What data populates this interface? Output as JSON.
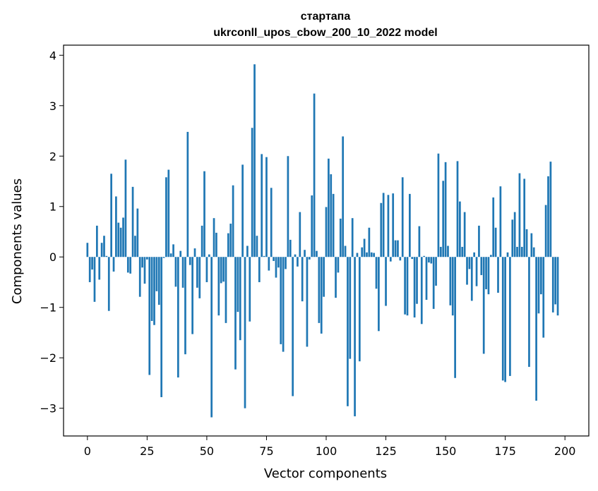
{
  "chart_data": {
    "type": "bar",
    "title_lines": [
      "стартапа",
      "ukrconll_upos_cbow_200_10_2022 model"
    ],
    "xlabel": "Vector components",
    "ylabel": "Components values",
    "xlim": [
      -10,
      210
    ],
    "ylim": [
      -3.55,
      4.2
    ],
    "x_ticks": [
      0,
      25,
      50,
      75,
      100,
      125,
      150,
      175,
      200
    ],
    "y_ticks": [
      -3,
      -2,
      -1,
      0,
      1,
      2,
      3,
      4
    ],
    "y_tick_labels": [
      "−3",
      "−2",
      "−1",
      "0",
      "1",
      "2",
      "3",
      "4"
    ],
    "bar_color": "#1f77b4",
    "grid": false,
    "legend": "none",
    "values": [
      0.28,
      -0.5,
      -0.25,
      -0.89,
      0.62,
      -0.45,
      0.28,
      0.42,
      0.02,
      -1.07,
      1.65,
      -0.29,
      1.2,
      0.68,
      0.58,
      0.78,
      1.93,
      -0.31,
      -0.33,
      1.39,
      0.42,
      0.96,
      -0.79,
      -0.21,
      -0.53,
      -0.05,
      -2.34,
      -1.27,
      -1.35,
      -0.68,
      -0.95,
      -2.78,
      -0.02,
      1.58,
      1.73,
      0.07,
      0.25,
      -0.59,
      -2.39,
      0.12,
      -0.61,
      -1.93,
      2.48,
      -0.16,
      -1.53,
      0.17,
      -0.61,
      -0.82,
      0.62,
      1.7,
      -0.5,
      0.05,
      -3.18,
      0.77,
      0.48,
      -1.16,
      -0.52,
      -0.49,
      -1.31,
      0.47,
      0.66,
      1.42,
      -2.23,
      -1.09,
      -1.65,
      1.83,
      -3.0,
      0.22,
      -1.28,
      2.56,
      3.82,
      0.42,
      -0.5,
      2.04,
      0.02,
      1.98,
      -0.27,
      1.37,
      -0.08,
      -0.41,
      -0.21,
      -1.73,
      -1.88,
      -0.24,
      2.0,
      0.34,
      -2.76,
      0.05,
      -0.19,
      0.89,
      -0.88,
      0.14,
      -1.78,
      -0.05,
      1.22,
      3.24,
      0.12,
      -1.31,
      -1.52,
      -0.79,
      0.99,
      1.95,
      1.64,
      1.25,
      -0.81,
      -0.31,
      0.76,
      2.39,
      0.22,
      -2.96,
      -2.02,
      0.77,
      -3.16,
      0.08,
      -2.07,
      0.19,
      0.36,
      0.09,
      0.58,
      0.09,
      0.08,
      -0.63,
      -1.47,
      1.07,
      1.27,
      -0.97,
      1.23,
      -0.09,
      1.26,
      0.33,
      0.33,
      -0.07,
      1.58,
      -1.14,
      -1.16,
      1.25,
      -0.04,
      -1.2,
      -0.93,
      0.61,
      -1.33,
      0.02,
      -0.85,
      -0.11,
      -0.13,
      -1.03,
      -0.57,
      2.05,
      0.2,
      1.51,
      1.88,
      0.22,
      -0.96,
      -1.16,
      -2.4,
      1.9,
      1.1,
      0.2,
      0.89,
      -0.55,
      -0.24,
      -0.87,
      0.09,
      -0.58,
      0.62,
      -0.36,
      -1.92,
      -0.64,
      -0.74,
      0.04,
      1.18,
      0.58,
      -0.71,
      1.4,
      -2.45,
      -2.48,
      0.09,
      -2.36,
      0.74,
      0.89,
      0.2,
      1.66,
      0.2,
      1.55,
      0.55,
      -2.18,
      0.47,
      0.19,
      -2.85,
      -1.12,
      -0.74,
      -1.6,
      1.03,
      1.6,
      1.89,
      -1.1,
      -0.94,
      -1.16
    ]
  }
}
